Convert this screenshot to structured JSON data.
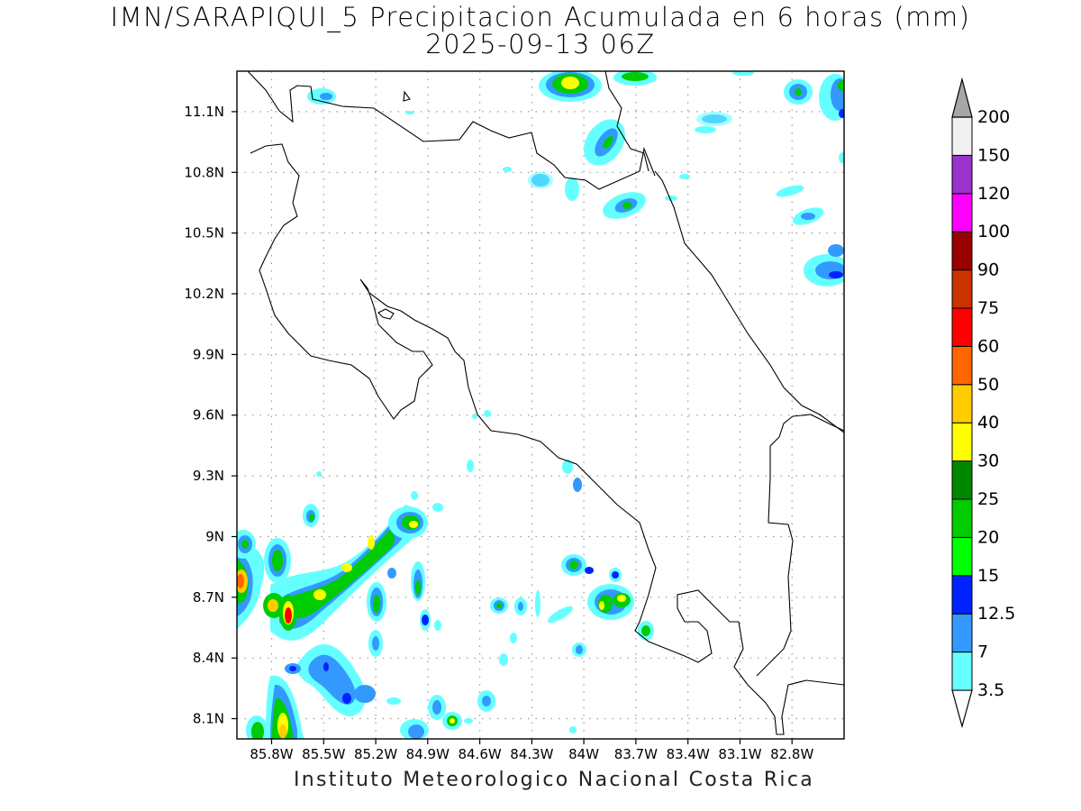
{
  "header": {
    "title_line1": "IMN/SARAPIQUI_5 Precipitacion Acumulada en 6 horas (mm)",
    "title_line2": "2025-09-13 06Z"
  },
  "footer": {
    "credit": "Instituto Meteorologico Nacional Costa Rica"
  },
  "map": {
    "lon_range": [
      -86.0,
      -82.5
    ],
    "lat_range": [
      8.0,
      11.3
    ],
    "x_ticks": [
      {
        "value": -85.8,
        "label": "85.8W"
      },
      {
        "value": -85.5,
        "label": "85.5W"
      },
      {
        "value": -85.2,
        "label": "85.2W"
      },
      {
        "value": -84.9,
        "label": "84.9W"
      },
      {
        "value": -84.6,
        "label": "84.6W"
      },
      {
        "value": -84.3,
        "label": "84.3W"
      },
      {
        "value": -84.0,
        "label": "84W"
      },
      {
        "value": -83.7,
        "label": "83.7W"
      },
      {
        "value": -83.4,
        "label": "83.4W"
      },
      {
        "value": -83.1,
        "label": "83.1W"
      },
      {
        "value": -82.8,
        "label": "82.8W"
      }
    ],
    "y_ticks": [
      {
        "value": 11.1,
        "label": "11.1N"
      },
      {
        "value": 10.8,
        "label": "10.8N"
      },
      {
        "value": 10.5,
        "label": "10.5N"
      },
      {
        "value": 10.2,
        "label": "10.2N"
      },
      {
        "value": 9.9,
        "label": "9.9N"
      },
      {
        "value": 9.6,
        "label": "9.6N"
      },
      {
        "value": 9.3,
        "label": "9.3N"
      },
      {
        "value": 9.0,
        "label": "9N"
      },
      {
        "value": 8.7,
        "label": "8.7N"
      },
      {
        "value": 8.4,
        "label": "8.4N"
      },
      {
        "value": 8.1,
        "label": "8.1N"
      }
    ],
    "grid": "dotted"
  },
  "colorbar": {
    "levels": [
      "3.5",
      "7",
      "12.5",
      "15",
      "20",
      "25",
      "30",
      "40",
      "50",
      "60",
      "75",
      "90",
      "100",
      "120",
      "150",
      "200"
    ],
    "colors": [
      "#66ffff",
      "#3399ff",
      "#0022ff",
      "#00ff00",
      "#00cc00",
      "#008800",
      "#ffff00",
      "#ffcc00",
      "#ff6600",
      "#ff0000",
      "#cc3300",
      "#990000",
      "#ff00ff",
      "#9933cc",
      "#f0f0f0",
      "#a6a6a6"
    ]
  }
}
